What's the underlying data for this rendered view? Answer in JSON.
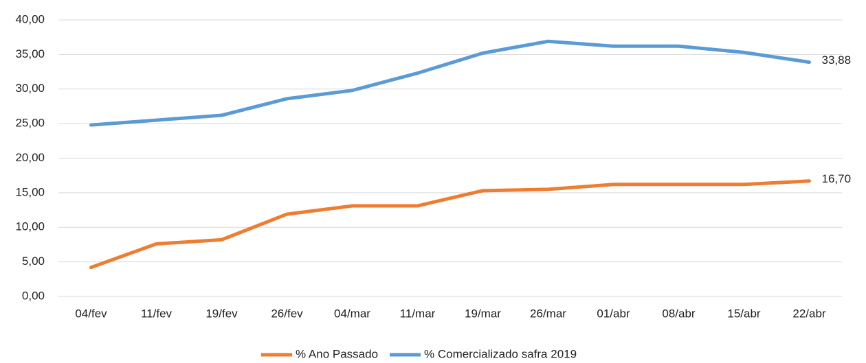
{
  "chart_data": {
    "type": "line",
    "categories": [
      "04/fev",
      "11/fev",
      "19/fev",
      "26/fev",
      "04/mar",
      "11/mar",
      "19/mar",
      "26/mar",
      "01/abr",
      "08/abr",
      "15/abr",
      "22/abr"
    ],
    "series": [
      {
        "name": "% Ano Passado",
        "color": "#ed7d31",
        "values": [
          4.2,
          7.6,
          8.2,
          11.9,
          13.1,
          13.1,
          15.3,
          15.5,
          16.2,
          16.2,
          16.2,
          16.7
        ],
        "value_labels": [
          null,
          null,
          null,
          null,
          null,
          null,
          null,
          null,
          null,
          null,
          null,
          "16,70"
        ]
      },
      {
        "name": "% Comercializado safra 2019",
        "color": "#5b9bd5",
        "values": [
          24.8,
          25.5,
          26.2,
          28.6,
          29.8,
          32.3,
          35.2,
          36.9,
          36.2,
          36.2,
          35.3,
          33.88
        ],
        "value_labels": [
          null,
          null,
          null,
          null,
          null,
          null,
          null,
          null,
          null,
          null,
          null,
          "33,88"
        ]
      }
    ],
    "ylim": [
      0,
      40
    ],
    "yticks": [
      {
        "value": 0,
        "label": "0,00"
      },
      {
        "value": 5,
        "label": "5,00"
      },
      {
        "value": 10,
        "label": "10,00"
      },
      {
        "value": 15,
        "label": "15,00"
      },
      {
        "value": 20,
        "label": "20,00"
      },
      {
        "value": 25,
        "label": "25,00"
      },
      {
        "value": 30,
        "label": "30,00"
      },
      {
        "value": 35,
        "label": "35,00"
      },
      {
        "value": 40,
        "label": "40,00"
      }
    ],
    "grid": true,
    "legend": "bottom"
  }
}
